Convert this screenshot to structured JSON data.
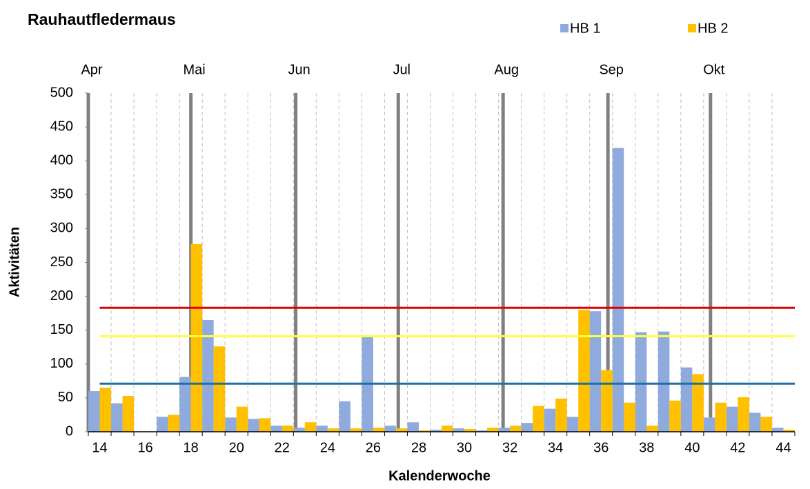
{
  "chart_data": {
    "type": "bar",
    "title": "Rauhautfledermaus",
    "x_label": "Kalenderwoche",
    "y_label": "Aktivitäten",
    "categories": [
      14,
      null,
      16,
      null,
      18,
      null,
      20,
      null,
      22,
      null,
      24,
      null,
      26,
      null,
      28,
      null,
      30,
      null,
      32,
      null,
      34,
      null,
      36,
      null,
      38,
      null,
      40,
      null,
      42,
      null,
      44
    ],
    "series": [
      {
        "name": "HB 1",
        "color": "#8faadc",
        "values": [
          60,
          42,
          0,
          22,
          81,
          165,
          21,
          19,
          9,
          6,
          9,
          45,
          140,
          9,
          14,
          3,
          5,
          2,
          6,
          13,
          34,
          22,
          178,
          419,
          147,
          148,
          95,
          21,
          37,
          28,
          6
        ]
      },
      {
        "name": "HB 2",
        "color": "#ffc000",
        "values": [
          65,
          53,
          0,
          25,
          277,
          126,
          37,
          20,
          9,
          14,
          5,
          5,
          6,
          5,
          2,
          9,
          4,
          6,
          9,
          38,
          49,
          180,
          91,
          43,
          9,
          46,
          85,
          43,
          51,
          22,
          3
        ]
      }
    ],
    "ylim": [
      0,
      500
    ],
    "yticks": [
      0,
      50,
      100,
      150,
      200,
      250,
      300,
      350,
      400,
      450,
      500
    ],
    "grid": true,
    "month_lines": [
      {
        "label": "Apr",
        "week": 13.5
      },
      {
        "label": "Mai",
        "week": 18.0
      },
      {
        "label": "Jun",
        "week": 22.6
      },
      {
        "label": "Jul",
        "week": 27.1
      },
      {
        "label": "Aug",
        "week": 31.7
      },
      {
        "label": "Sep",
        "week": 36.3
      },
      {
        "label": "Okt",
        "week": 40.8
      }
    ],
    "reference_lines": [
      {
        "value": 183,
        "color": "#e00000"
      },
      {
        "value": 141,
        "color": "#ffff40"
      },
      {
        "value": 71,
        "color": "#1f6fa0"
      }
    ],
    "legend": "top-right"
  }
}
